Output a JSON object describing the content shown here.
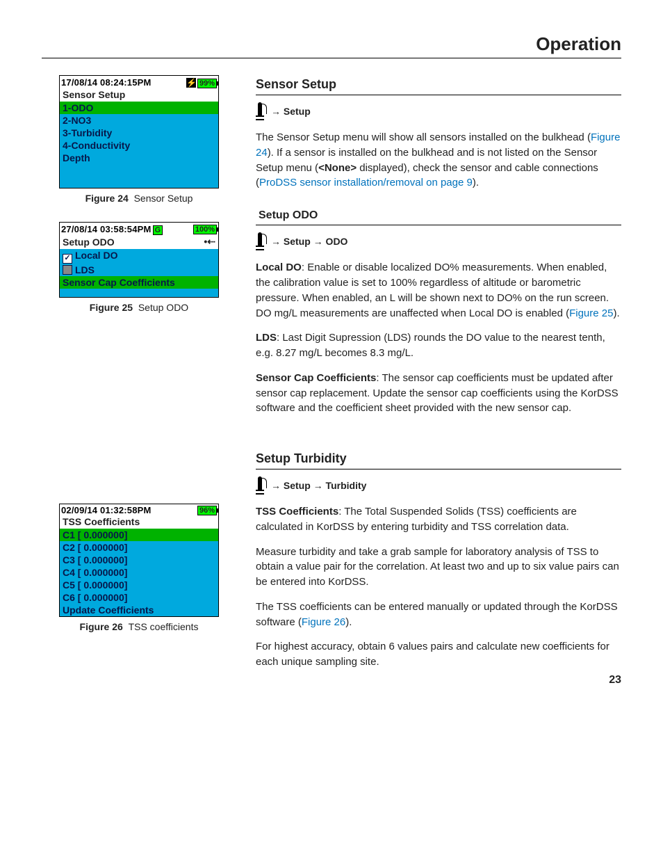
{
  "header": {
    "title": "Operation"
  },
  "pageNumber": "23",
  "fig24": {
    "timestamp": "17/08/14  08:24:15PM",
    "battery": "99%",
    "title": "Sensor Setup",
    "rows": [
      {
        "label": "1-ODO",
        "cls": "row-green"
      },
      {
        "label": "2-NO3",
        "cls": "row-blue"
      },
      {
        "label": "3-Turbidity",
        "cls": "row-blue"
      },
      {
        "label": "4-Conductivity",
        "cls": "row-blue"
      },
      {
        "label": "Depth",
        "cls": "row-blue"
      }
    ],
    "captionLabel": "Figure 24",
    "captionText": "Sensor Setup"
  },
  "fig25": {
    "timestamp": "27/08/14  03:58:54PM",
    "gps": "G",
    "battery": "100%",
    "title": "Setup ODO",
    "rows": [
      {
        "label": "Local DO",
        "cls": "row-blue",
        "checkbox": "checked"
      },
      {
        "label": "LDS",
        "cls": "row-blue",
        "checkbox": "unchecked"
      },
      {
        "label": "Sensor Cap Coefficients",
        "cls": "row-green"
      }
    ],
    "captionLabel": "Figure 25",
    "captionText": "Setup ODO"
  },
  "fig26": {
    "timestamp": "02/09/14  01:32:58PM",
    "battery": "96%",
    "title": "TSS Coefficients",
    "rows": [
      {
        "label": "C1 [ 0.000000]",
        "cls": "row-green"
      },
      {
        "label": "C2 [ 0.000000]",
        "cls": "row-blue"
      },
      {
        "label": "C3 [ 0.000000]",
        "cls": "row-blue"
      },
      {
        "label": "C4 [ 0.000000]",
        "cls": "row-blue"
      },
      {
        "label": "C5 [ 0.000000]",
        "cls": "row-blue"
      },
      {
        "label": "C6 [ 0.000000]",
        "cls": "row-blue"
      },
      {
        "label": "Update Coefficients",
        "cls": "row-blue"
      }
    ],
    "captionLabel": "Figure 26",
    "captionText": "TSS coefficients"
  },
  "sensorSetup": {
    "heading": "Sensor Setup",
    "nav": " → Setup",
    "para1a": "The Sensor Setup menu will show all sensors installed on the bulkhead (",
    "link1": "Figure 24",
    "para1b": "). If a sensor is installed on the bulkhead and is not listed on the Sensor Setup menu (",
    "noneBold": "<None>",
    "para1c": " displayed), check the sensor and cable connections (",
    "link2": "ProDSS sensor installation/removal on page 9",
    "para1d": ")."
  },
  "setupOdo": {
    "heading": "Setup ODO",
    "nav": " → Setup → ODO",
    "localDoLabel": "Local DO",
    "localDoText1": ": Enable or disable localized DO% measurements. When enabled, the calibration value is set to 100% regardless of altitude or barometric pressure. When enabled, an L will be shown next to DO% on the run screen. DO mg/L measurements are unaffected when Local DO is enabled (",
    "localDoLink": "Figure 25",
    "localDoText2": ").",
    "ldsLabel": "LDS",
    "ldsText": ": Last Digit Supression (LDS) rounds the DO value to the nearest tenth, e.g. 8.27 mg/L becomes 8.3 mg/L.",
    "capLabel": "Sensor Cap Coefficients",
    "capText": ": The sensor cap coefficients must be updated after sensor cap replacement. Update the sensor cap coefficients using the KorDSS software and the coefficient sheet provided with the new sensor cap."
  },
  "setupTurb": {
    "heading": "Setup Turbidity",
    "nav": " → Setup →  Turbidity",
    "tssLabel": "TSS Coefficients",
    "tssText": ": The Total Suspended Solids (TSS) coefficients are calculated in KorDSS by entering turbidity and TSS correlation data.",
    "p2": "Measure turbidity and take a grab sample for laboratory analysis of TSS to obtain a value pair for the correlation. At least two and up to six value pairs can be entered into KorDSS.",
    "p3a": "The TSS coefficients can be entered manually or updated through the KorDSS software (",
    "p3Link": "Figure 26",
    "p3b": ").",
    "p4": "For highest accuracy, obtain 6 values pairs and calculate new coefficients for each unique sampling site."
  }
}
